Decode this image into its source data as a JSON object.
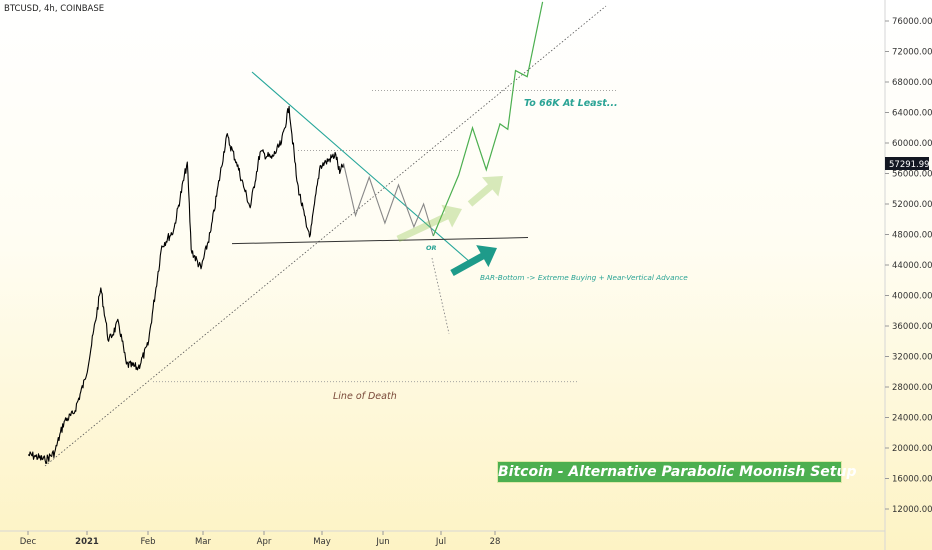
{
  "header": {
    "ticker": "BTCUSD, 4h, COINBASE"
  },
  "chart_data": {
    "type": "line",
    "title": "Bitcoin - Alternative Parabolic Moonish Setup",
    "y_ticks": [
      "76000.00",
      "72000.00",
      "68000.00",
      "64000.00",
      "60000.00",
      "56000.00",
      "52000.00",
      "48000.00",
      "44000.00",
      "40000.00",
      "36000.00",
      "32000.00",
      "28000.00",
      "24000.00",
      "20000.00",
      "16000.00",
      "12000.00"
    ],
    "y_range": [
      10000,
      78500
    ],
    "x_ticks": [
      "Dec",
      "2021",
      "Feb",
      "Mar",
      "Apr",
      "May",
      "Jun",
      "Jul",
      "28"
    ],
    "current_price": "57291.99",
    "price_series": {
      "name": "",
      "points": [
        [
          "Dec 1",
          19100
        ],
        [
          "Dec 5",
          18900
        ],
        [
          "Dec 10",
          18400
        ],
        [
          "Dec 15",
          19400
        ],
        [
          "Dec 20",
          23500
        ],
        [
          "Dec 25",
          24500
        ],
        [
          "Dec 31",
          29000
        ],
        [
          "Jan 3",
          33000
        ],
        [
          "Jan 8",
          41000
        ],
        [
          "Jan 12",
          34000
        ],
        [
          "Jan 17",
          36500
        ],
        [
          "Jan 21",
          31000
        ],
        [
          "Jan 27",
          30500
        ],
        [
          "Feb 1",
          33500
        ],
        [
          "Feb 8",
          46500
        ],
        [
          "Feb 14",
          48500
        ],
        [
          "Feb 21",
          57500
        ],
        [
          "Feb 23",
          46000
        ],
        [
          "Feb 28",
          43500
        ],
        [
          "Mar 5",
          48500
        ],
        [
          "Mar 13",
          61000
        ],
        [
          "Mar 18",
          57500
        ],
        [
          "Mar 22",
          54000
        ],
        [
          "Mar 25",
          51500
        ],
        [
          "Mar 30",
          58800
        ],
        [
          "Apr 5",
          58000
        ],
        [
          "Apr 10",
          60000
        ],
        [
          "Apr 14",
          64800
        ],
        [
          "Apr 18",
          55000
        ],
        [
          "Apr 23",
          49000
        ],
        [
          "Apr 25",
          48000
        ],
        [
          "Apr 30",
          57000
        ],
        [
          "May 3",
          57500
        ],
        [
          "May 8",
          58500
        ],
        [
          "May 10",
          56000
        ],
        [
          "May 12",
          57291.99
        ]
      ]
    },
    "projection_path": {
      "name": "",
      "points": [
        [
          "May 12",
          57291.99
        ],
        [
          "May 18",
          50500
        ],
        [
          "May 25",
          55500
        ],
        [
          "Jun 2",
          49500
        ],
        [
          "Jun 9",
          54500
        ],
        [
          "Jun 17",
          49000
        ],
        [
          "Jun 22",
          52000
        ],
        [
          "Jun 27",
          47800
        ],
        [
          "Jul 3",
          51500
        ],
        [
          "Jul 10",
          55800
        ],
        [
          "Jul 17",
          62000
        ],
        [
          "Jul 24",
          56500
        ],
        [
          "Jul 31",
          62500
        ],
        [
          "Aug 4",
          61800
        ],
        [
          "Aug 8",
          69500
        ],
        [
          "Aug 14",
          68700
        ],
        [
          "Aug 22",
          78500
        ]
      ]
    },
    "levels": {
      "resistance_dotted": 59000,
      "target_dotted": 66900,
      "support_dotted": 28700,
      "support_solid_from": 46800,
      "support_solid_to": 47600,
      "breakdown_to": 35000
    },
    "annotations": {
      "target": "To 66K At Least...",
      "or": "OR",
      "bar_bottom": "BAR-Bottom -> Extreme Buying + Near-Vertical Advance",
      "line_of_death": "Line of Death"
    }
  }
}
